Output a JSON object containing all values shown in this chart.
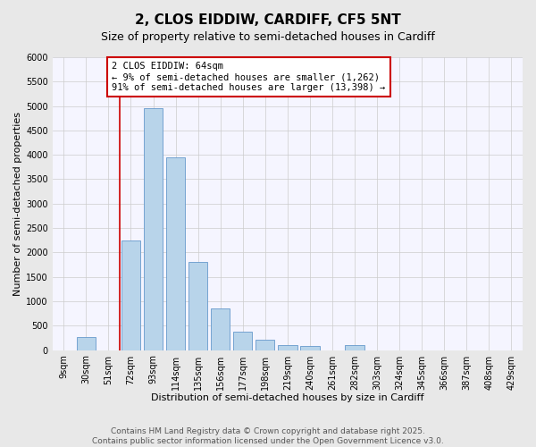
{
  "title": "2, CLOS EIDDIW, CARDIFF, CF5 5NT",
  "subtitle": "Size of property relative to semi-detached houses in Cardiff",
  "xlabel": "Distribution of semi-detached houses by size in Cardiff",
  "ylabel": "Number of semi-detached properties",
  "bar_labels": [
    "9sqm",
    "30sqm",
    "51sqm",
    "72sqm",
    "93sqm",
    "114sqm",
    "135sqm",
    "156sqm",
    "177sqm",
    "198sqm",
    "219sqm",
    "240sqm",
    "261sqm",
    "282sqm",
    "303sqm",
    "324sqm",
    "345sqm",
    "366sqm",
    "387sqm",
    "408sqm",
    "429sqm"
  ],
  "bar_values": [
    0,
    270,
    0,
    2250,
    4950,
    3950,
    1800,
    850,
    380,
    220,
    100,
    80,
    0,
    100,
    0,
    0,
    0,
    0,
    0,
    0,
    0
  ],
  "bar_color": "#b8d4ea",
  "bar_edge_color": "#6699cc",
  "vline_pos": 2.5,
  "annotation_title": "2 CLOS EIDDIW: 64sqm",
  "annotation_line2": "← 9% of semi-detached houses are smaller (1,262)",
  "annotation_line3": "91% of semi-detached houses are larger (13,398) →",
  "annotation_box_color": "#ffffff",
  "annotation_box_edge": "#cc0000",
  "vline_color": "#cc0000",
  "ylim": [
    0,
    6000
  ],
  "yticks": [
    0,
    500,
    1000,
    1500,
    2000,
    2500,
    3000,
    3500,
    4000,
    4500,
    5000,
    5500,
    6000
  ],
  "bg_color": "#e8e8e8",
  "plot_bg_color": "#f5f5ff",
  "footer_line1": "Contains HM Land Registry data © Crown copyright and database right 2025.",
  "footer_line2": "Contains public sector information licensed under the Open Government Licence v3.0.",
  "title_fontsize": 11,
  "subtitle_fontsize": 9,
  "axis_label_fontsize": 8,
  "tick_fontsize": 7,
  "annotation_fontsize": 7.5,
  "footer_fontsize": 6.5
}
